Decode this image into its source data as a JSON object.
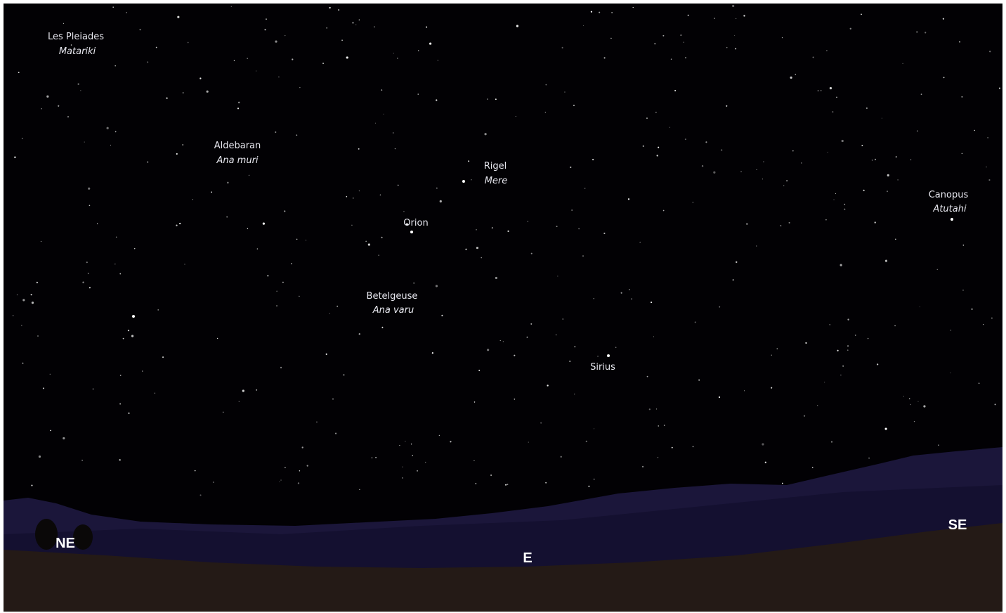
{
  "objects": [
    {
      "name": "Les Pleiades",
      "alt_name": "Matariki"
    },
    {
      "name": "Aldebaran",
      "alt_name": "Ana muri"
    },
    {
      "name": "Rigel",
      "alt_name": "Mere"
    },
    {
      "name": "Orion"
    },
    {
      "name": "Betelgeuse",
      "alt_name": "Ana varu"
    },
    {
      "name": "Sirius"
    },
    {
      "name": "Canopus",
      "alt_name": "Atutahi"
    }
  ],
  "compass": [
    "NE",
    "E",
    "SE"
  ]
}
